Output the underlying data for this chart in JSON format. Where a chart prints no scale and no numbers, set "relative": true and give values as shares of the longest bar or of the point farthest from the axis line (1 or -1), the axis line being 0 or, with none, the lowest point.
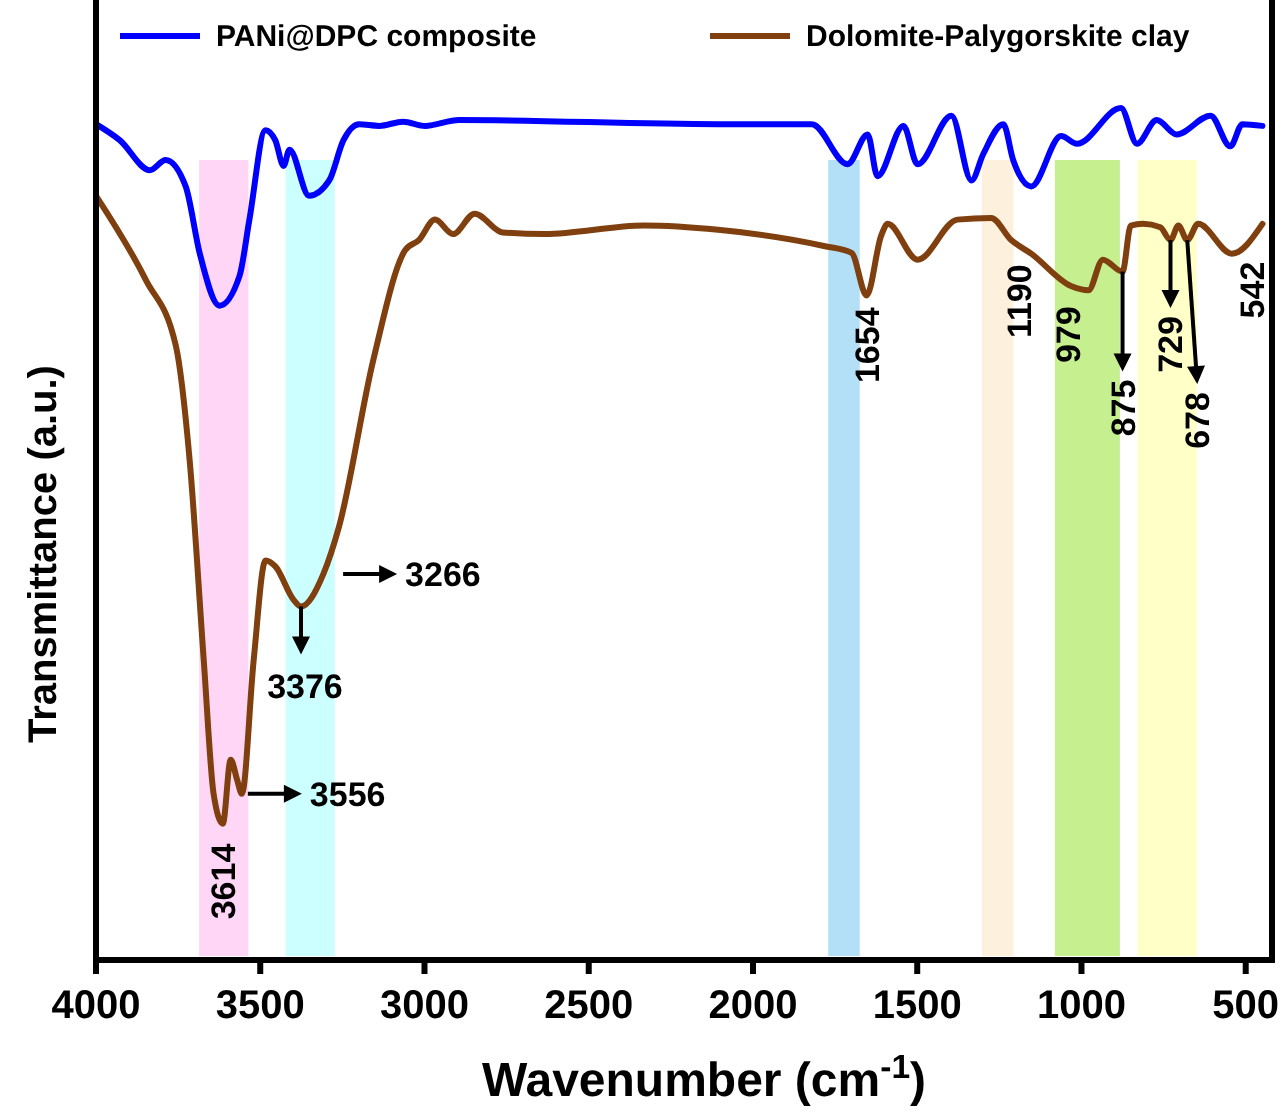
{
  "chart_data": {
    "type": "line",
    "xlabel": "Wavenumber (cm$^{-1}$)",
    "ylabel": "Transmittance (a.u.)",
    "relative": true,
    "xlim": [
      4000,
      420
    ],
    "xticks": [
      4000,
      3500,
      3000,
      2500,
      2000,
      1500,
      1000,
      500
    ],
    "legend": "top",
    "grid": false,
    "series": [
      {
        "name": "PANi@DPC composite",
        "color": "#0000ff",
        "x": [
          4000,
          3927,
          3836,
          3788,
          3727,
          3684,
          3624,
          3563,
          3533,
          3484,
          3454,
          3429,
          3411,
          3351,
          3290,
          3247,
          3199,
          3138,
          3065,
          2998,
          2895,
          2106,
          1821,
          1712,
          1651,
          1621,
          1542,
          1499,
          1396,
          1335,
          1299,
          1238,
          1208,
          1153,
          1062,
          1014,
          880,
          831,
          771,
          710,
          607,
          547,
          510,
          449
        ],
        "values": [
          0.981,
          0.962,
          0.927,
          0.939,
          0.908,
          0.829,
          0.768,
          0.803,
          0.869,
          0.974,
          0.962,
          0.932,
          0.951,
          0.897,
          0.915,
          0.962,
          0.981,
          0.979,
          0.984,
          0.979,
          0.986,
          0.981,
          0.981,
          0.934,
          0.969,
          0.92,
          0.979,
          0.934,
          0.991,
          0.915,
          0.946,
          0.981,
          0.939,
          0.908,
          0.967,
          0.958,
          1,
          0.958,
          0.986,
          0.969,
          0.991,
          0.955,
          0.981,
          0.979
        ]
      },
      {
        "name": "Dolomite-Palygorskite clay",
        "color": "#7f3f0f",
        "x": [
          4000,
          3848,
          3757,
          3715,
          3672,
          3642,
          3614,
          3590,
          3570,
          3556,
          3520,
          3484,
          3454,
          3399,
          3376,
          3308,
          3260,
          3156,
          3059,
          3017,
          2968,
          2913,
          2847,
          2762,
          2634,
          2331,
          2106,
          1784,
          1700,
          1654,
          1610,
          1590,
          1499,
          1378,
          1275,
          1214,
          1153,
          1032,
          979,
          935,
          875,
          850,
          813,
          760,
          729,
          705,
          678,
          645,
          542,
          449
        ],
        "values": [
          0.897,
          0.798,
          0.721,
          0.587,
          0.352,
          0.195,
          0.16,
          0.235,
          0.211,
          0.195,
          0.352,
          0.469,
          0.462,
          0.423,
          0.415,
          0.453,
          0.509,
          0.704,
          0.833,
          0.845,
          0.869,
          0.852,
          0.876,
          0.854,
          0.852,
          0.862,
          0.857,
          0.838,
          0.83,
          0.78,
          0.85,
          0.864,
          0.822,
          0.869,
          0.871,
          0.845,
          0.829,
          0.791,
          0.786,
          0.822,
          0.808,
          0.862,
          0.864,
          0.86,
          0.845,
          0.862,
          0.845,
          0.864,
          0.829,
          0.864
        ]
      }
    ],
    "bands": [
      {
        "axis": "x",
        "from": 3686,
        "to": 3536,
        "color": "#ffd6f6"
      },
      {
        "axis": "x",
        "from": 3423,
        "to": 3273,
        "color": "#ccffff"
      },
      {
        "axis": "x",
        "from": 1771,
        "to": 1675,
        "color": "#b3e0f7"
      },
      {
        "axis": "x",
        "from": 1303,
        "to": 1207,
        "color": "#fdf0dc"
      },
      {
        "axis": "x",
        "from": 1081,
        "to": 883,
        "color": "#c6ef8f"
      },
      {
        "axis": "x",
        "from": 829,
        "to": 649,
        "color": "#ffffc8"
      }
    ],
    "annotations": [
      {
        "text": "3614",
        "x": 3614,
        "y": 0.16
      },
      {
        "text": "3556",
        "x": 3556,
        "y": 0.195
      },
      {
        "text": "3376",
        "x": 3376,
        "y": 0.415
      },
      {
        "text": "3266",
        "x": 3266,
        "y": 0.453
      },
      {
        "text": "1654",
        "x": 1654,
        "y": 0.78
      },
      {
        "text": "1190",
        "x": 1190,
        "y": 0.84
      },
      {
        "text": "979",
        "x": 979,
        "y": 0.786
      },
      {
        "text": "875",
        "x": 875,
        "y": 0.808
      },
      {
        "text": "729",
        "x": 729,
        "y": 0.845
      },
      {
        "text": "678",
        "x": 678,
        "y": 0.845
      },
      {
        "text": "542",
        "x": 542,
        "y": 0.829
      }
    ]
  }
}
